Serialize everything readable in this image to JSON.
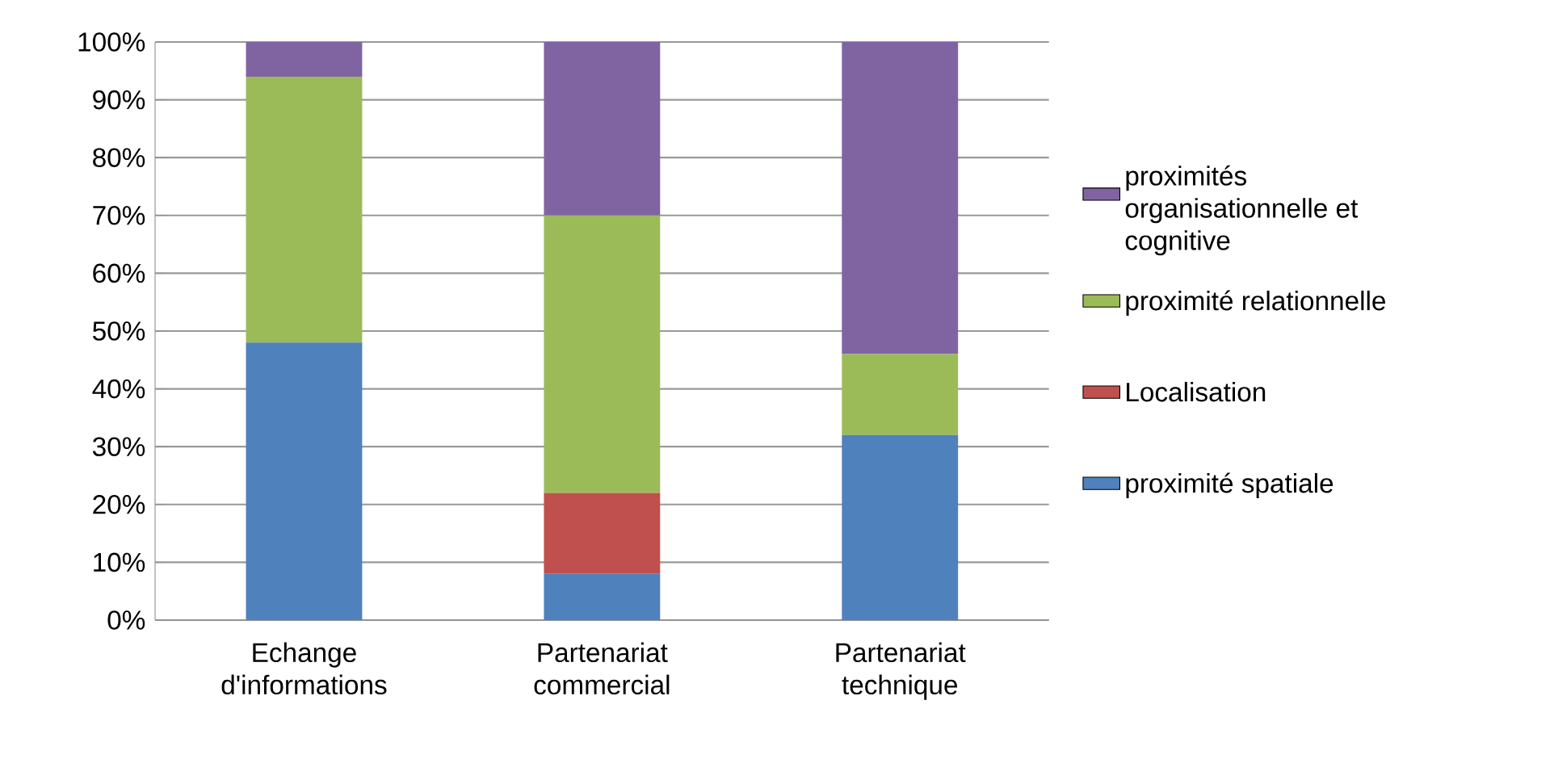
{
  "chart_data": {
    "type": "bar",
    "stacked": true,
    "categories": [
      "Echange d'informations",
      "Partenariat commercial",
      "Partenariat technique"
    ],
    "series": [
      {
        "name": "proximité spatiale",
        "color": "#4f81bd",
        "values": [
          48,
          8,
          32
        ]
      },
      {
        "name": "Localisation",
        "color": "#c0504d",
        "values": [
          0,
          14,
          0
        ]
      },
      {
        "name": "proximité relationnelle",
        "color": "#9bbb59",
        "values": [
          46,
          48,
          14
        ]
      },
      {
        "name": "proximités organisationnelle et cognitive",
        "color": "#8064a2",
        "values": [
          6,
          30,
          54
        ]
      }
    ],
    "ylim": [
      0,
      100
    ],
    "yticks": [
      {
        "value": 0,
        "label": "0%"
      },
      {
        "value": 10,
        "label": "10%"
      },
      {
        "value": 20,
        "label": "20%"
      },
      {
        "value": 30,
        "label": "30%"
      },
      {
        "value": 40,
        "label": "40%"
      },
      {
        "value": 50,
        "label": "50%"
      },
      {
        "value": 60,
        "label": "60%"
      },
      {
        "value": 70,
        "label": "70%"
      },
      {
        "value": 80,
        "label": "80%"
      },
      {
        "value": 90,
        "label": "90%"
      },
      {
        "value": 100,
        "label": "100%"
      }
    ],
    "grid": "y",
    "legend": "right"
  }
}
